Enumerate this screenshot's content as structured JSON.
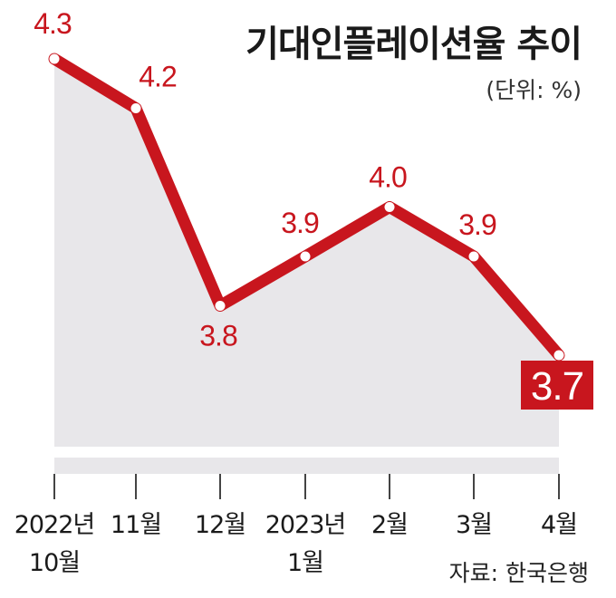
{
  "chart_data": {
    "type": "area",
    "title": "기대인플레이션율 추이",
    "unit_label": "(단위: %)",
    "source": "자료: 한국은행",
    "categories": [
      [
        "2022년",
        "10월"
      ],
      [
        "11월"
      ],
      [
        "12월"
      ],
      [
        "2023년",
        "1월"
      ],
      [
        "2월"
      ],
      [
        "3월"
      ],
      [
        "4월"
      ]
    ],
    "values": [
      4.3,
      4.2,
      3.8,
      3.9,
      4.0,
      3.9,
      3.7
    ],
    "value_labels": [
      "4.3",
      "4.2",
      "3.8",
      "3.9",
      "4.0",
      "3.9",
      "3.7"
    ],
    "highlight_last": true,
    "xlabel": "",
    "ylabel": "",
    "colors": {
      "line": "#c8161e",
      "area": "#e8e7ea",
      "label": "#c8161e",
      "highlight_bg": "#c8161e",
      "highlight_text": "#ffffff"
    }
  }
}
